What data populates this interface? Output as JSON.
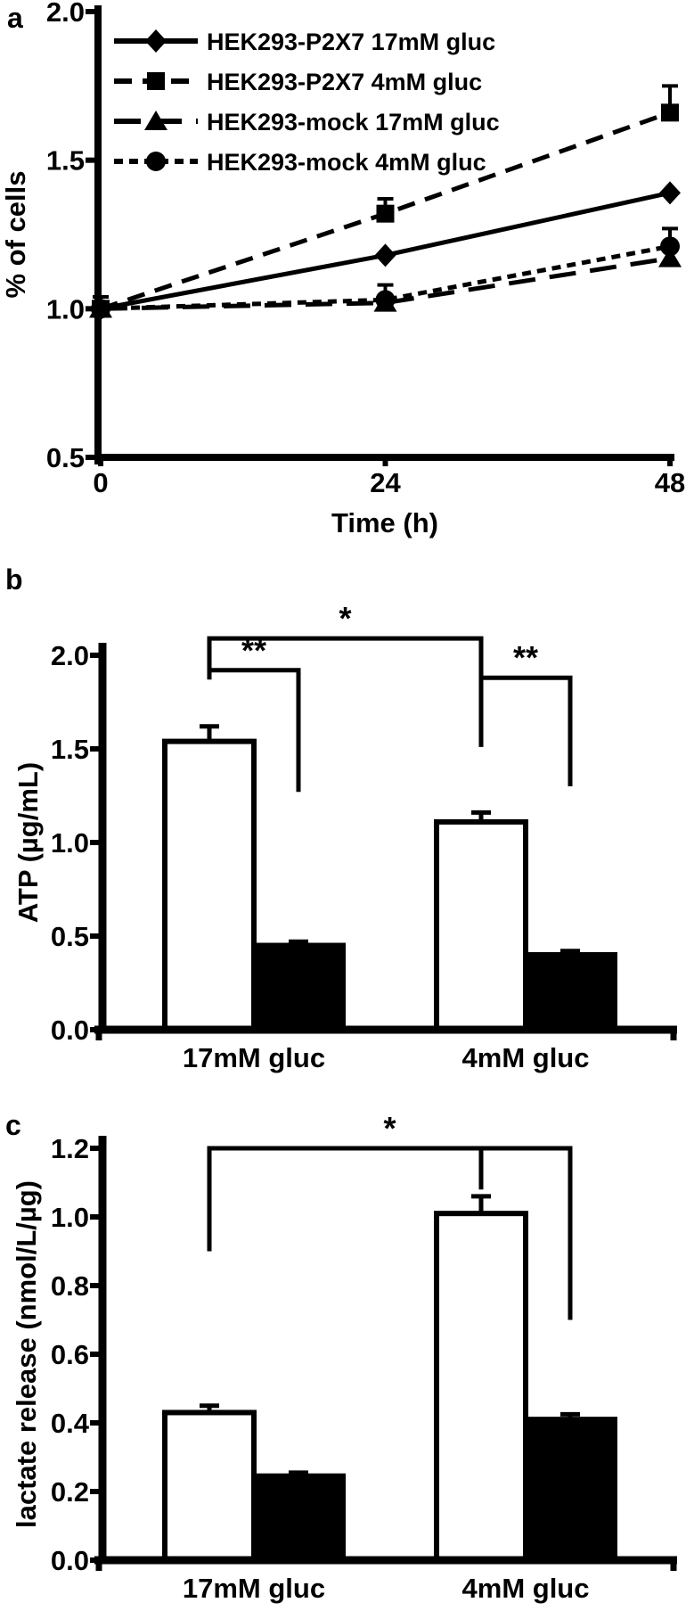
{
  "figure_title": "Three-panel figure: cell growth, ATP and lactate under glucose conditions",
  "panels": {
    "a": {
      "label": "a"
    },
    "b": {
      "label": "b"
    },
    "c": {
      "label": "c"
    }
  },
  "colors": {
    "ink": "#000000",
    "background": "#ffffff",
    "open_bar_fill": "#ffffff",
    "filled_bar_fill": "#000000"
  },
  "chart_data": [
    {
      "id": "a",
      "panel_label": "a",
      "type": "line",
      "title": "",
      "xlabel": "Time (h)",
      "ylabel": "% of cells",
      "x": [
        0,
        24,
        48
      ],
      "xticks": [
        0,
        24,
        48
      ],
      "ylim": [
        0.5,
        2.0
      ],
      "yticks": [
        0.5,
        1.0,
        1.5,
        2.0
      ],
      "grid": false,
      "legend_position": "top-left-inside",
      "series": [
        {
          "name": "HEK293-P2X7  17mM gluc",
          "marker": "diamond",
          "dash": "solid",
          "values": [
            1.0,
            1.18,
            1.39
          ],
          "errors": [
            0,
            0,
            0
          ]
        },
        {
          "name": "HEK293-P2X7 4mM gluc",
          "marker": "square",
          "dash": "dashed",
          "values": [
            1.0,
            1.32,
            1.66
          ],
          "errors": [
            0.04,
            0.05,
            0.09
          ]
        },
        {
          "name": "HEK293-mock 17mM gluc",
          "marker": "triangle",
          "dash": "longdash",
          "values": [
            1.0,
            1.02,
            1.17
          ],
          "errors": [
            0,
            0,
            0
          ]
        },
        {
          "name": "HEK293-mock 4mM gluc",
          "marker": "circle",
          "dash": "shortdash",
          "values": [
            1.0,
            1.03,
            1.21
          ],
          "errors": [
            0,
            0.05,
            0.06
          ]
        }
      ]
    },
    {
      "id": "b",
      "panel_label": "b",
      "type": "bar",
      "title": "",
      "xlabel": "",
      "ylabel": "ATP (µg/mL)",
      "categories": [
        "17mM gluc",
        "4mM gluc"
      ],
      "ylim": [
        0.0,
        2.0
      ],
      "yticks": [
        0.0,
        0.5,
        1.0,
        1.5,
        2.0
      ],
      "grid": false,
      "series": [
        {
          "name": "open bar",
          "fill": "#ffffff",
          "values": [
            1.54,
            1.11
          ],
          "errors": [
            0.08,
            0.05
          ]
        },
        {
          "name": "filled bar",
          "fill": "#000000",
          "values": [
            0.45,
            0.4
          ],
          "errors": [
            0.02,
            0.02
          ]
        }
      ],
      "significance": [
        {
          "label": "*",
          "points": [
            {
              "g": 0,
              "b": 0,
              "v": 1.87
            },
            {
              "g": 0,
              "b": 0,
              "v": 2.09
            },
            {
              "g": 1,
              "b": 0,
              "v": 2.09
            },
            {
              "g": 1,
              "b": 0,
              "v": 1.51
            }
          ]
        },
        {
          "label": "**",
          "points": [
            {
              "g": 0,
              "b": 0,
              "v": 1.92
            },
            {
              "g": 0,
              "b": 1,
              "v": 1.92
            },
            {
              "g": 0,
              "b": 1,
              "v": 1.27
            }
          ]
        },
        {
          "label": "**",
          "points": [
            {
              "g": 1,
              "b": 0,
              "v": 1.88
            },
            {
              "g": 1,
              "b": 1,
              "v": 1.88
            },
            {
              "g": 1,
              "b": 1,
              "v": 1.3
            }
          ]
        }
      ]
    },
    {
      "id": "c",
      "panel_label": "c",
      "type": "bar",
      "title": "",
      "xlabel": "",
      "ylabel": "lactate release (nmol/L/µg)",
      "categories": [
        "17mM gluc",
        "4mM gluc"
      ],
      "ylim": [
        0.0,
        1.2
      ],
      "yticks": [
        0.0,
        0.2,
        0.4,
        0.6,
        0.8,
        1.0,
        1.2
      ],
      "grid": false,
      "series": [
        {
          "name": "open bar",
          "fill": "#ffffff",
          "values": [
            0.43,
            1.01
          ],
          "errors": [
            0.02,
            0.05
          ]
        },
        {
          "name": "filled bar",
          "fill": "#000000",
          "values": [
            0.245,
            0.41
          ],
          "errors": [
            0.01,
            0.015
          ]
        }
      ],
      "significance": [
        {
          "label": "*",
          "points": [
            {
              "g": 0,
              "b": 0,
              "v": 0.9
            },
            {
              "g": 0,
              "b": 0,
              "v": 1.2
            },
            {
              "g": 1,
              "b": 1,
              "v": 1.2
            },
            {
              "g": 1,
              "b": 1,
              "v": 0.7
            }
          ]
        },
        {
          "label": "",
          "points": [
            {
              "g": 1,
              "b": 0,
              "v": 1.2
            },
            {
              "g": 1,
              "b": 0,
              "v": 1.08
            }
          ]
        }
      ]
    }
  ]
}
